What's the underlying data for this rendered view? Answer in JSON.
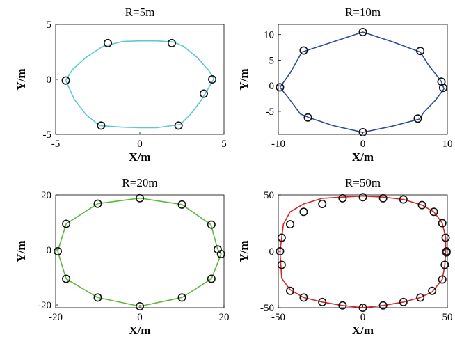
{
  "chart_data": [
    {
      "type": "scatter",
      "title": "R=5m",
      "xlabel": "X/m",
      "ylabel": "Y/m",
      "xlim": [
        -5,
        5
      ],
      "ylim": [
        -5,
        5
      ],
      "xticks": [
        -5,
        0,
        5
      ],
      "yticks": [
        -5,
        0,
        5
      ],
      "grid": false,
      "line_color": "#5bc8d2",
      "path_x": [
        -4.4,
        -4.0,
        -3.2,
        -2.2,
        -1.0,
        0.0,
        1.0,
        2.0,
        2.6,
        3.4,
        4.1,
        4.4,
        4.0,
        3.6,
        3.0,
        2.4,
        1.0,
        0.0,
        -1.0,
        -2.4,
        -3.2,
        -3.9,
        -4.4
      ],
      "path_y": [
        -0.1,
        0.9,
        2.0,
        3.0,
        3.45,
        3.5,
        3.5,
        3.4,
        3.0,
        2.0,
        0.8,
        0.05,
        -1.0,
        -2.0,
        -3.2,
        -4.1,
        -4.4,
        -4.4,
        -4.35,
        -4.2,
        -3.2,
        -1.8,
        -0.1
      ],
      "points_x": [
        -4.4,
        -1.9,
        1.9,
        4.3,
        3.8,
        2.3,
        -2.3
      ],
      "points_y": [
        -0.1,
        3.3,
        3.3,
        0.0,
        -1.3,
        -4.2,
        -4.2
      ]
    },
    {
      "type": "scatter",
      "title": "R=10m",
      "xlabel": "X/m",
      "ylabel": "Y/m",
      "xlim": [
        -10,
        10
      ],
      "ylim": [
        -9.5,
        12
      ],
      "xticks": [
        -10,
        0,
        10
      ],
      "yticks": [
        -5,
        0,
        5,
        10
      ],
      "grid": false,
      "line_color": "#2e4a9a",
      "path_x": [
        -9.8,
        -8.6,
        -7.2,
        -3.5,
        0.0,
        3.5,
        6.8,
        7.7,
        9.3,
        9.6,
        8.6,
        7.2,
        6.7,
        3.5,
        0.0,
        -3.5,
        -6.4,
        -7.4,
        -8.6,
        -9.8
      ],
      "path_y": [
        -0.3,
        2.5,
        6.6,
        8.6,
        10.5,
        8.6,
        6.6,
        4.2,
        0.8,
        -0.6,
        -2.8,
        -5.2,
        -6.5,
        -7.9,
        -9.1,
        -7.8,
        -6.2,
        -5.5,
        -2.8,
        -0.3
      ],
      "points_x": [
        -9.8,
        -7.0,
        0.0,
        6.8,
        9.3,
        9.5,
        6.5,
        0.0,
        -6.5
      ],
      "points_y": [
        -0.3,
        6.9,
        10.5,
        6.8,
        0.8,
        -0.4,
        -6.4,
        -9.1,
        -6.2
      ]
    },
    {
      "type": "scatter",
      "title": "R=20m",
      "xlabel": "X/m",
      "ylabel": "Y/m",
      "xlim": [
        -20,
        20
      ],
      "ylim": [
        -21,
        20
      ],
      "xticks": [
        -20,
        0,
        20
      ],
      "yticks": [
        -20,
        0,
        20
      ],
      "grid": false,
      "line_color": "#5cb83c",
      "path_x": [
        -19.5,
        -17.5,
        -10,
        0,
        10,
        16.9,
        18.5,
        19.3,
        17.0,
        10,
        0,
        -10,
        -17.5,
        -19.5
      ],
      "path_y": [
        -0.5,
        9.5,
        16.8,
        18.8,
        16.5,
        9.2,
        0.2,
        -1.5,
        -10.5,
        -17.3,
        -20.5,
        -17.3,
        -10.5,
        -0.5
      ],
      "points_x": [
        -19.5,
        -17.5,
        -10,
        0,
        10,
        17.0,
        18.5,
        19.3,
        17.0,
        10,
        0,
        -10,
        -17.5
      ],
      "points_y": [
        -0.5,
        9.5,
        16.8,
        18.8,
        16.5,
        9.2,
        0.2,
        -1.5,
        -10.5,
        -17.3,
        -20.5,
        -17.3,
        -10.5
      ]
    },
    {
      "type": "scatter",
      "title": "R=50m",
      "xlabel": "X/m",
      "ylabel": "Y/m",
      "xlim": [
        -50,
        50
      ],
      "ylim": [
        -50,
        50
      ],
      "xticks": [
        -50,
        0,
        50
      ],
      "yticks": [
        -50,
        0,
        50
      ],
      "grid": false,
      "line_color": "#d62728",
      "path_x": [
        -49,
        -48,
        -47,
        -43,
        -35,
        -24,
        -12,
        0,
        12,
        24,
        35,
        42,
        47,
        49,
        49,
        48.5,
        47,
        41,
        34,
        24,
        12,
        0,
        -12,
        -24,
        -35,
        -43,
        -48,
        -49
      ],
      "path_y": [
        0,
        12,
        24,
        35,
        42,
        47,
        48,
        49,
        48,
        46,
        41,
        35,
        25,
        12,
        0,
        -12,
        -25,
        -36,
        -41,
        -45,
        -48,
        -50,
        -48,
        -45,
        -41,
        -34,
        -24,
        0
      ],
      "points_x": [
        -49,
        -48,
        -43,
        -35,
        -24,
        -12,
        0,
        12,
        24,
        35,
        42,
        47,
        49,
        49.5,
        49.5,
        48.5,
        47,
        41,
        34,
        24,
        12,
        0,
        -12,
        -24,
        -35,
        -43,
        -48
      ],
      "points_y": [
        0,
        12,
        24,
        35,
        42,
        47,
        48,
        47,
        46,
        41,
        35,
        25,
        12,
        0,
        -1,
        -12,
        -25,
        -35,
        -41,
        -45,
        -48,
        -50,
        -48,
        -45,
        -41,
        -35,
        -12
      ]
    }
  ]
}
